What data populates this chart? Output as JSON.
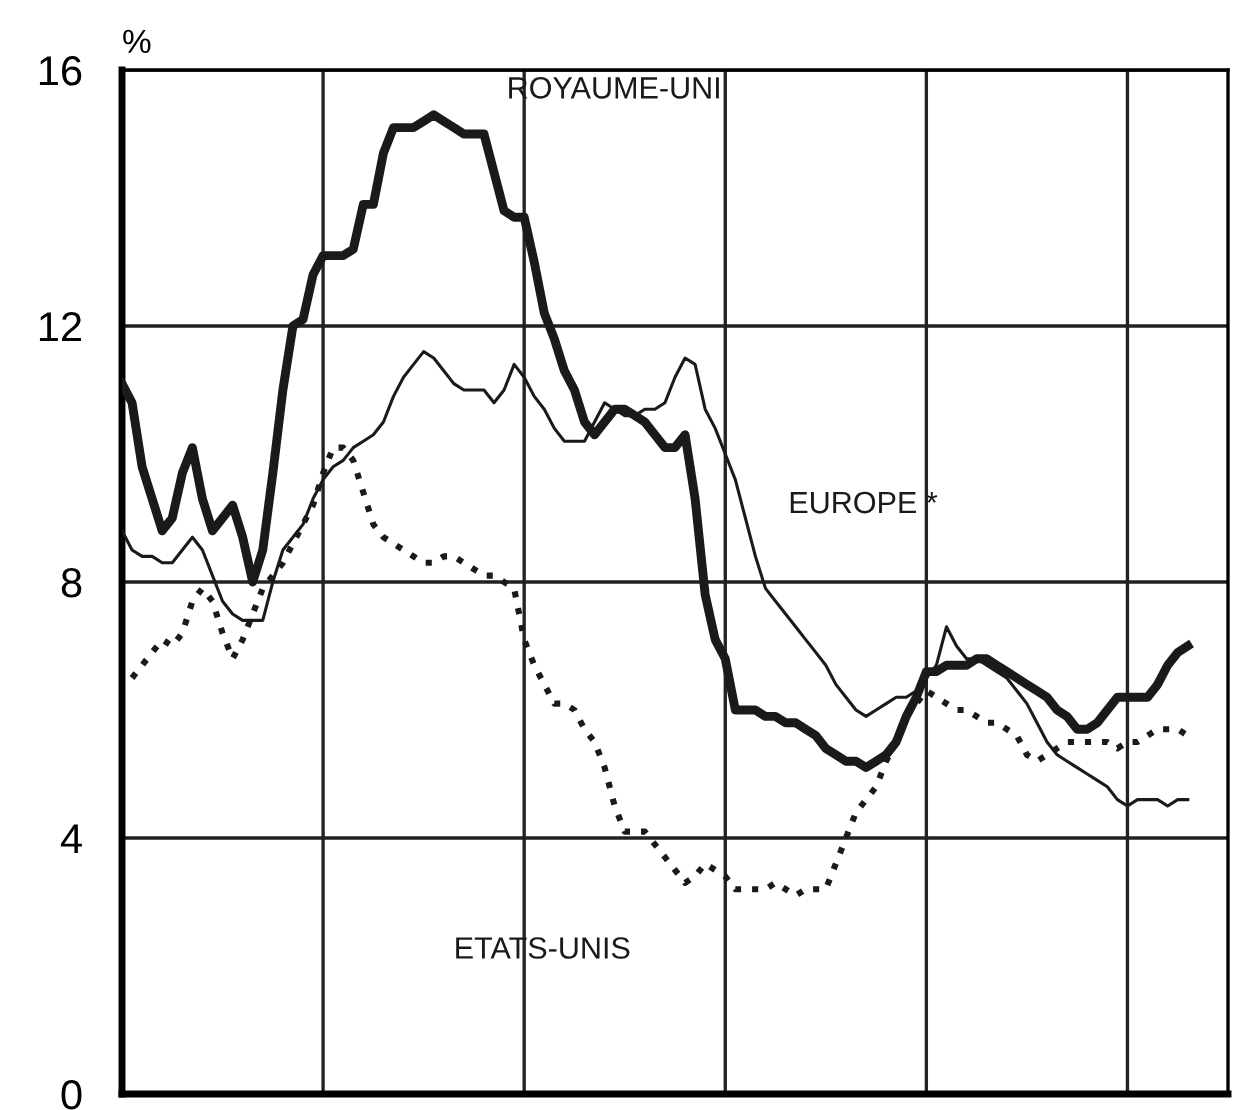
{
  "chart_data": {
    "type": "line",
    "ylabel": "%",
    "ylim": [
      0,
      16
    ],
    "yticks": [
      0,
      4,
      8,
      12,
      16
    ],
    "categories": [
      null,
      null,
      null,
      null,
      null,
      null,
      null,
      null,
      null,
      null,
      null,
      null,
      null,
      null,
      null,
      null,
      null,
      null,
      null,
      null,
      null,
      null,
      null,
      null,
      null,
      null,
      null,
      null,
      null,
      null,
      null,
      null,
      null,
      null,
      null,
      null,
      null,
      null,
      null,
      null,
      null,
      null,
      null,
      null,
      null,
      null,
      null,
      null,
      null,
      null,
      null,
      null,
      null,
      null,
      null,
      null,
      null,
      null,
      null,
      null,
      null,
      null,
      null,
      null,
      null,
      null,
      null,
      null,
      null,
      null,
      null,
      null,
      null,
      null,
      null,
      null,
      null,
      null,
      null,
      null,
      null,
      null,
      null,
      null,
      null,
      null,
      null,
      null,
      null,
      null,
      null,
      null,
      null,
      null,
      null,
      null,
      null,
      null,
      null,
      null,
      null,
      null,
      null,
      null,
      null,
      null,
      null,
      null,
      null,
      null,
      null
    ],
    "grid": true,
    "marker": "none",
    "series": [
      {
        "name": "ROYAUME-UNI",
        "color": "#1a1a1a",
        "line_style": "solid",
        "values": [
          11.1,
          10.8,
          9.8,
          9.3,
          8.8,
          9.0,
          9.7,
          10.1,
          9.3,
          8.8,
          9.0,
          9.2,
          8.7,
          8.0,
          8.5,
          9.7,
          11.0,
          12.0,
          12.1,
          12.8,
          13.1,
          13.1,
          13.1,
          13.2,
          13.9,
          13.9,
          14.7,
          15.1,
          15.1,
          15.1,
          15.2,
          15.3,
          15.2,
          15.1,
          15.0,
          15.0,
          15.0,
          14.4,
          13.8,
          13.7,
          13.7,
          13.0,
          12.2,
          11.8,
          11.3,
          11.0,
          10.5,
          10.3,
          10.5,
          10.7,
          10.7,
          10.6,
          10.5,
          10.3,
          10.1,
          10.1,
          10.3,
          9.3,
          7.8,
          7.1,
          6.8,
          6.0,
          6.0,
          6.0,
          5.9,
          5.9,
          5.8,
          5.8,
          5.7,
          5.6,
          5.4,
          5.3,
          5.2,
          5.2,
          5.1,
          5.2,
          5.3,
          5.5,
          5.9,
          6.2,
          6.6,
          6.6,
          6.7,
          6.7,
          6.7,
          6.8,
          6.8,
          6.7,
          6.6,
          6.5,
          6.4,
          6.3,
          6.2,
          6.0,
          5.9,
          5.7,
          5.7,
          5.8,
          6.0,
          6.2,
          6.2,
          6.2,
          6.2,
          6.4,
          6.7,
          6.9,
          7.0,
          null,
          null,
          null,
          null
        ]
      },
      {
        "name": "EUROPE *",
        "color": "#1a1a1a",
        "line_style": "solid",
        "values": [
          8.8,
          8.5,
          8.4,
          8.4,
          8.3,
          8.3,
          8.5,
          8.7,
          8.5,
          8.1,
          7.7,
          7.5,
          7.4,
          7.4,
          7.4,
          8.0,
          8.5,
          8.7,
          8.9,
          9.3,
          9.6,
          9.8,
          9.9,
          10.1,
          10.2,
          10.3,
          10.5,
          10.9,
          11.2,
          11.4,
          11.6,
          11.5,
          11.3,
          11.1,
          11.0,
          11.0,
          11.0,
          10.8,
          11.0,
          11.4,
          11.2,
          10.9,
          10.7,
          10.4,
          10.2,
          10.2,
          10.2,
          10.5,
          10.8,
          10.7,
          10.6,
          10.6,
          10.7,
          10.7,
          10.8,
          11.2,
          11.5,
          11.4,
          10.7,
          10.4,
          10.0,
          9.6,
          9.0,
          8.4,
          7.9,
          7.7,
          7.5,
          7.3,
          7.1,
          6.9,
          6.7,
          6.4,
          6.2,
          6.0,
          5.9,
          6.0,
          6.1,
          6.2,
          6.2,
          6.3,
          6.5,
          6.7,
          7.3,
          7.0,
          6.8,
          6.8,
          6.7,
          6.6,
          6.5,
          6.3,
          6.1,
          5.8,
          5.5,
          5.3,
          5.2,
          5.1,
          5.0,
          4.9,
          4.8,
          4.6,
          4.5,
          4.6,
          4.6,
          4.6,
          4.5,
          4.6,
          4.6,
          null,
          null,
          null,
          null
        ]
      },
      {
        "name": "ETATS-UNIS",
        "color": "#1a1a1a",
        "line_style": "dotted",
        "values": [
          null,
          6.5,
          6.7,
          6.9,
          7.1,
          7.0,
          7.2,
          7.7,
          7.9,
          7.7,
          7.2,
          6.8,
          7.1,
          7.5,
          7.9,
          8.1,
          8.3,
          8.6,
          8.9,
          9.2,
          9.7,
          10.1,
          10.1,
          9.9,
          9.4,
          8.9,
          8.7,
          8.6,
          8.5,
          8.4,
          8.3,
          8.3,
          8.4,
          8.4,
          8.3,
          8.2,
          8.1,
          8.1,
          8.0,
          7.9,
          7.1,
          6.7,
          6.4,
          6.1,
          6.1,
          6.0,
          5.7,
          5.5,
          5.1,
          4.5,
          4.1,
          4.1,
          4.1,
          3.9,
          3.7,
          3.5,
          3.3,
          3.4,
          3.6,
          3.5,
          3.4,
          3.2,
          3.2,
          3.2,
          3.2,
          3.3,
          3.2,
          3.1,
          3.2,
          3.2,
          3.2,
          3.6,
          4.0,
          4.4,
          4.6,
          4.8,
          5.2,
          5.5,
          5.9,
          6.1,
          6.3,
          6.2,
          6.1,
          6.0,
          6.0,
          5.9,
          5.8,
          5.8,
          5.7,
          5.6,
          5.3,
          5.2,
          5.3,
          5.4,
          5.5,
          5.5,
          5.5,
          5.5,
          5.5,
          5.4,
          5.5,
          5.5,
          5.6,
          5.7,
          5.7,
          5.7,
          5.6,
          null,
          null,
          null,
          null
        ]
      }
    ]
  }
}
